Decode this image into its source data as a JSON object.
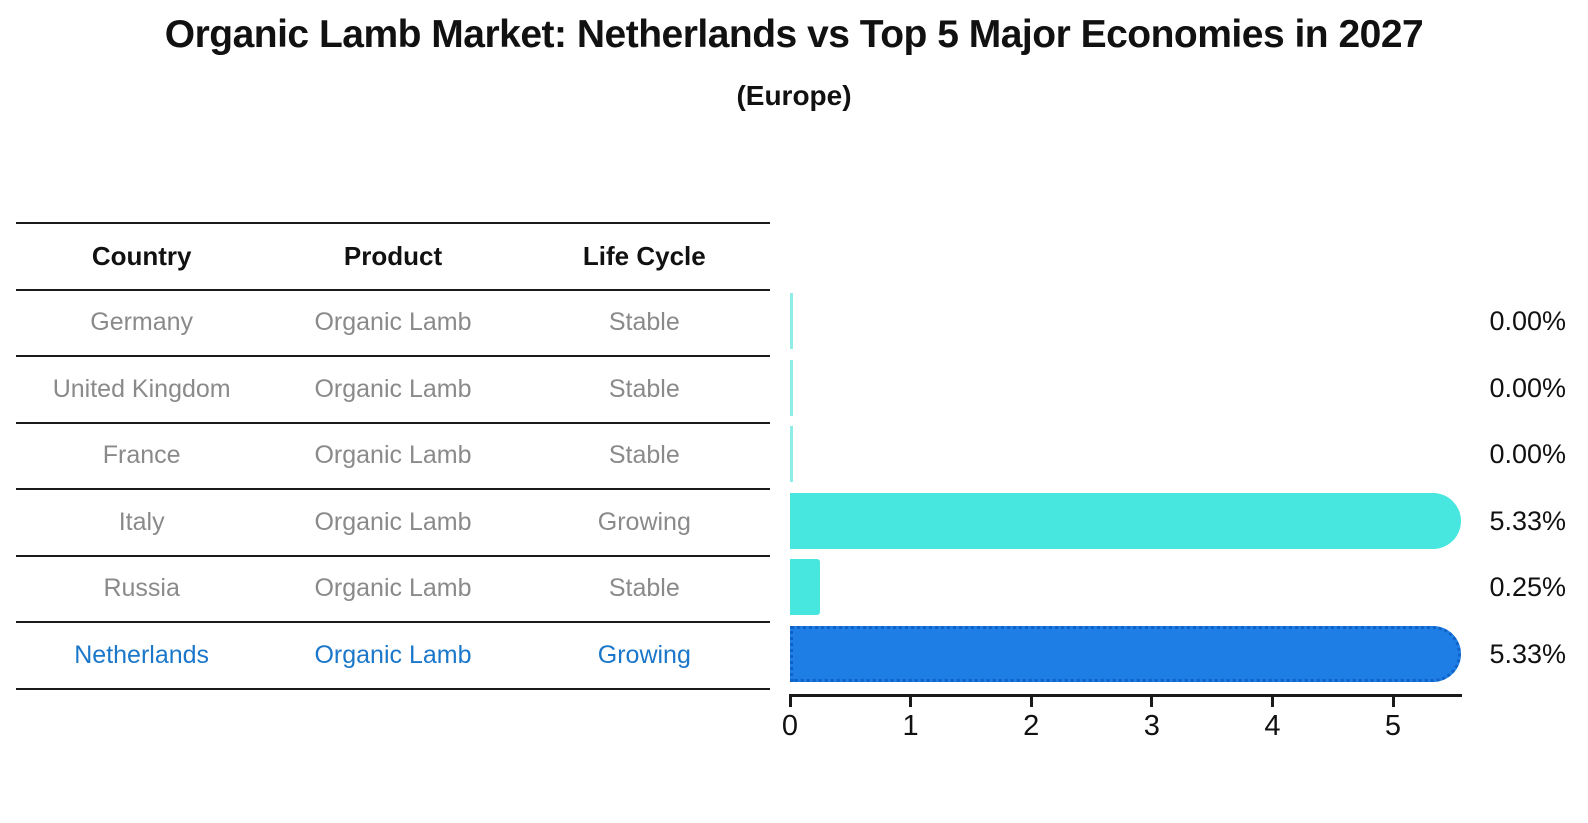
{
  "title": "Organic Lamb Market: Netherlands vs Top 5 Major Economies in 2027",
  "subtitle": "(Europe)",
  "table": {
    "headers": [
      "Country",
      "Product",
      "Life Cycle"
    ],
    "rows": [
      {
        "country": "Germany",
        "product": "Organic Lamb",
        "life_cycle": "Stable",
        "highlight": false
      },
      {
        "country": "United Kingdom",
        "product": "Organic Lamb",
        "life_cycle": "Stable",
        "highlight": false
      },
      {
        "country": "France",
        "product": "Organic Lamb",
        "life_cycle": "Stable",
        "highlight": false
      },
      {
        "country": "Italy",
        "product": "Organic Lamb",
        "life_cycle": "Growing",
        "highlight": false
      },
      {
        "country": "Russia",
        "product": "Organic Lamb",
        "life_cycle": "Stable",
        "highlight": false
      },
      {
        "country": "Netherlands",
        "product": "Organic Lamb",
        "life_cycle": "Growing",
        "highlight": true
      }
    ]
  },
  "chart_data": {
    "type": "bar",
    "orientation": "horizontal",
    "title": "Organic Lamb Market: Netherlands vs Top 5 Major Economies in 2027",
    "subtitle": "(Europe)",
    "categories": [
      "Germany",
      "United Kingdom",
      "France",
      "Italy",
      "Russia",
      "Netherlands"
    ],
    "values": [
      0.0,
      0.0,
      0.0,
      5.33,
      0.25,
      5.33
    ],
    "value_labels": [
      "0.00%",
      "0.00%",
      "0.00%",
      "5.33%",
      "0.25%",
      "5.33%"
    ],
    "unit": "percent",
    "x_ticks": [
      "0",
      "1",
      "2",
      "3",
      "4",
      "5"
    ],
    "xlim": [
      0,
      5.57
    ],
    "grid": false,
    "legend": false,
    "highlight_index": 5,
    "colors": {
      "bar_default": "#47e6df",
      "bar_zero": "#8fece6",
      "bar_highlight": "#1e7ee5",
      "bar_highlight_dots": "#0f62c8",
      "highlight_text": "#1b77ca",
      "table_text": "#8a8a8a",
      "axis": "#1a1a1a",
      "label_text": "#111111"
    }
  }
}
